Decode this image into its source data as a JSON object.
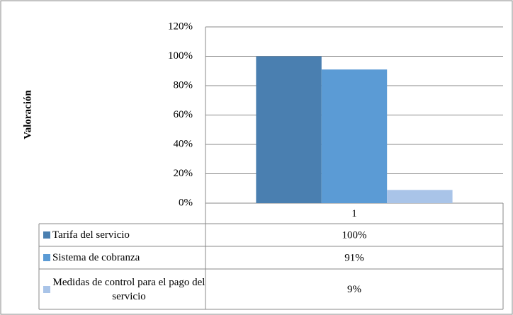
{
  "chart_data": {
    "type": "bar",
    "y_label": "Valoración",
    "categories": [
      "1"
    ],
    "series": [
      {
        "name": "Tarifa del servicio",
        "color": "#4a7fb0",
        "values": [
          100
        ],
        "value_labels": [
          "100%"
        ]
      },
      {
        "name": "Sistema de cobranza",
        "color": "#5b9bd5",
        "values": [
          91
        ],
        "value_labels": [
          "91%"
        ]
      },
      {
        "name": "Medidas de control para el pago del servicio",
        "color": "#a9c4e8",
        "values": [
          9
        ],
        "value_labels": [
          "9%"
        ]
      }
    ],
    "ylim": [
      0,
      120
    ],
    "yticks": [
      {
        "value": 0,
        "label": "0%"
      },
      {
        "value": 20,
        "label": "20%"
      },
      {
        "value": 40,
        "label": "40%"
      },
      {
        "value": 60,
        "label": "60%"
      },
      {
        "value": 80,
        "label": "80%"
      },
      {
        "value": 100,
        "label": "100%"
      },
      {
        "value": 120,
        "label": "120%"
      }
    ],
    "grid": true
  }
}
